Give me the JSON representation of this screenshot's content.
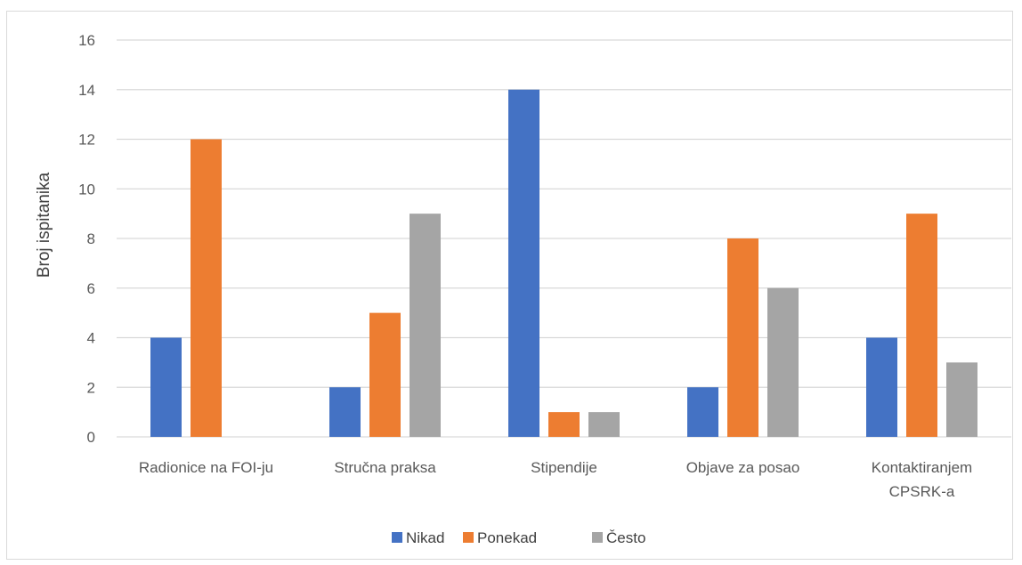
{
  "chart_data": {
    "type": "bar",
    "title": "",
    "xlabel": "",
    "ylabel": "Broj ispitanika",
    "ylim": [
      0,
      16
    ],
    "y_ticks": [
      0,
      2,
      4,
      6,
      8,
      10,
      12,
      14,
      16
    ],
    "grid": true,
    "legend_position": "bottom",
    "categories": [
      [
        "Radionice na FOI-ju"
      ],
      [
        "Stručna praksa"
      ],
      [
        "Stipendije"
      ],
      [
        "Objave za posao"
      ],
      [
        "Kontaktiranjem",
        "CPSRK-a"
      ]
    ],
    "series": [
      {
        "name": "Nikad",
        "color": "#4472c4",
        "values": [
          4,
          2,
          14,
          2,
          4
        ]
      },
      {
        "name": "Ponekad",
        "color": "#ed7d31",
        "values": [
          12,
          5,
          1,
          8,
          9
        ]
      },
      {
        "name": "Često",
        "color": "#a5a5a5",
        "values": [
          0,
          9,
          1,
          6,
          3
        ]
      }
    ]
  }
}
